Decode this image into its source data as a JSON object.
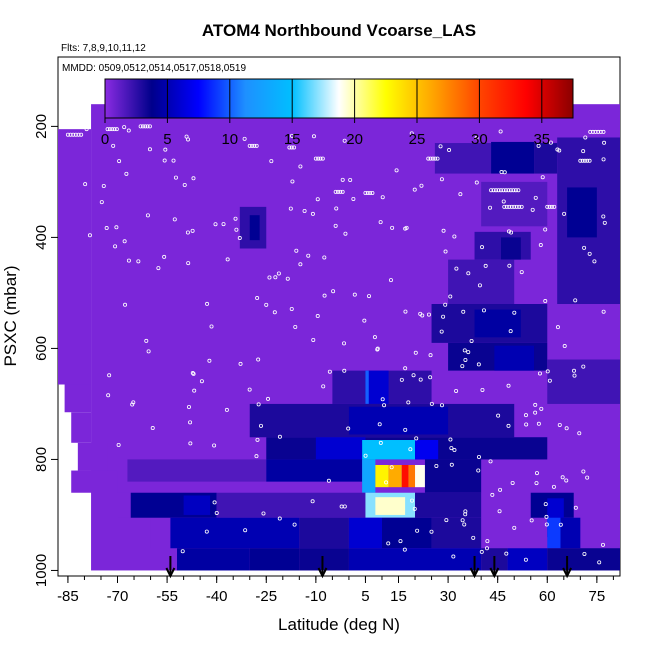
{
  "chart_data": {
    "type": "heatmap",
    "title": "ATOM4 Northbound Vcoarse_LAS",
    "flights_note": "Flts: 7,8,9,10,11,12",
    "dates_note": "MMDD: 0509,0512,0514,0517,0518,0519",
    "xlabel": "Latitude (deg N)",
    "ylabel": "PSXC (mbar)",
    "xlim": [
      -88,
      82
    ],
    "ylim": [
      1010,
      75
    ],
    "y_reversed": true,
    "x_ticks": [
      "-85",
      "-70",
      "-55",
      "-40",
      "-25",
      "-10",
      "5",
      "15",
      "30",
      "45",
      "60",
      "75"
    ],
    "y_ticks": [
      "200",
      "400",
      "600",
      "800",
      "1000"
    ],
    "colorbar": {
      "range": [
        0,
        37.5
      ],
      "ticks": [
        "0",
        "5",
        "10",
        "15",
        "20",
        "25",
        "30",
        "35"
      ],
      "colors": [
        "#8a2be2",
        "#00008b",
        "#0000ff",
        "#1e90ff",
        "#00bfff",
        "#ffffff",
        "#ffff00",
        "#ffa500",
        "#ff4500",
        "#ff0000",
        "#8b0000"
      ]
    },
    "background_level": 0.4,
    "coverage": [
      {
        "lat0": -78,
        "lat1": 82,
        "p0": 160,
        "p1": 1000
      },
      {
        "lat0": -88,
        "lat1": -78,
        "p0": 205,
        "p1": 665
      },
      {
        "lat0": -86,
        "lat1": -78,
        "p0": 665,
        "p1": 715
      },
      {
        "lat0": -84,
        "lat1": -78,
        "p0": 715,
        "p1": 770
      },
      {
        "lat0": -82,
        "lat1": -73,
        "p0": 770,
        "p1": 820
      },
      {
        "lat0": -84,
        "lat1": -70,
        "p0": 820,
        "p1": 860
      },
      {
        "lat0": -70,
        "lat1": -60,
        "p0": 860,
        "p1": 905
      },
      {
        "lat0": -60,
        "lat1": -54,
        "p0": 905,
        "p1": 960
      },
      {
        "lat0": -54,
        "lat1": -52,
        "p0": 960,
        "p1": 1000
      }
    ],
    "cells": [
      {
        "lat0": -33,
        "lat1": -25,
        "p0": 345,
        "p1": 420,
        "v": 2.5
      },
      {
        "lat0": -30,
        "lat1": -27,
        "p0": 360,
        "p1": 405,
        "v": 4
      },
      {
        "lat0": 26,
        "lat1": 43,
        "p0": 230,
        "p1": 285,
        "v": 2
      },
      {
        "lat0": 43,
        "lat1": 56,
        "p0": 228,
        "p1": 285,
        "v": 4
      },
      {
        "lat0": 56,
        "lat1": 63,
        "p0": 230,
        "p1": 285,
        "v": 3
      },
      {
        "lat0": 63,
        "lat1": 82,
        "p0": 220,
        "p1": 520,
        "v": 2.5
      },
      {
        "lat0": 66,
        "lat1": 75,
        "p0": 310,
        "p1": 400,
        "v": 4
      },
      {
        "lat0": 40,
        "lat1": 60,
        "p0": 300,
        "p1": 380,
        "v": 1.5
      },
      {
        "lat0": 38,
        "lat1": 55,
        "p0": 390,
        "p1": 440,
        "v": 2.5
      },
      {
        "lat0": 46,
        "lat1": 52,
        "p0": 400,
        "p1": 440,
        "v": 3.5
      },
      {
        "lat0": 30,
        "lat1": 50,
        "p0": 440,
        "p1": 520,
        "v": 2
      },
      {
        "lat0": 25,
        "lat1": 60,
        "p0": 520,
        "p1": 590,
        "v": 3
      },
      {
        "lat0": 38,
        "lat1": 52,
        "p0": 530,
        "p1": 580,
        "v": 4.5
      },
      {
        "lat0": 30,
        "lat1": 60,
        "p0": 590,
        "p1": 640,
        "v": 3.5
      },
      {
        "lat0": 44,
        "lat1": 56,
        "p0": 595,
        "p1": 640,
        "v": 5
      },
      {
        "lat0": 60,
        "lat1": 82,
        "p0": 620,
        "p1": 700,
        "v": 2
      },
      {
        "lat0": -5,
        "lat1": 25,
        "p0": 640,
        "p1": 700,
        "v": 2.5
      },
      {
        "lat0": 5,
        "lat1": 12,
        "p0": 640,
        "p1": 700,
        "v": 6
      },
      {
        "lat0": 5,
        "lat1": 6,
        "p0": 640,
        "p1": 700,
        "v": 10
      },
      {
        "lat0": -30,
        "lat1": 50,
        "p0": 700,
        "p1": 760,
        "v": 3
      },
      {
        "lat0": 0,
        "lat1": 30,
        "p0": 705,
        "p1": 755,
        "v": 5
      },
      {
        "lat0": -25,
        "lat1": 60,
        "p0": 760,
        "p1": 800,
        "v": 3.5
      },
      {
        "lat0": -10,
        "lat1": 5,
        "p0": 760,
        "p1": 800,
        "v": 6
      },
      {
        "lat0": 4,
        "lat1": 20,
        "p0": 765,
        "p1": 800,
        "v": 15
      },
      {
        "lat0": 20,
        "lat1": 27,
        "p0": 765,
        "p1": 800,
        "v": 7
      },
      {
        "lat0": -67,
        "lat1": -25,
        "p0": 800,
        "p1": 840,
        "v": 1.5
      },
      {
        "lat0": -25,
        "lat1": 4,
        "p0": 800,
        "p1": 840,
        "v": 4.5
      },
      {
        "lat0": 4,
        "lat1": 8,
        "p0": 800,
        "p1": 860,
        "v": 13
      },
      {
        "lat0": 8,
        "lat1": 12,
        "p0": 810,
        "p1": 850,
        "v": 23
      },
      {
        "lat0": 12,
        "lat1": 16,
        "p0": 810,
        "p1": 850,
        "v": 26
      },
      {
        "lat0": 16,
        "lat1": 18,
        "p0": 810,
        "p1": 850,
        "v": 33
      },
      {
        "lat0": 18,
        "lat1": 20,
        "p0": 810,
        "p1": 850,
        "v": 28
      },
      {
        "lat0": 20,
        "lat1": 23,
        "p0": 810,
        "p1": 850,
        "v": 19
      },
      {
        "lat0": 23,
        "lat1": 40,
        "p0": 800,
        "p1": 860,
        "v": 3.5
      },
      {
        "lat0": -66,
        "lat1": -40,
        "p0": 860,
        "p1": 905,
        "v": 4
      },
      {
        "lat0": -50,
        "lat1": -42,
        "p0": 865,
        "p1": 900,
        "v": 5.5
      },
      {
        "lat0": -40,
        "lat1": 5,
        "p0": 860,
        "p1": 905,
        "v": 2
      },
      {
        "lat0": 5,
        "lat1": 20,
        "p0": 860,
        "p1": 905,
        "v": 17
      },
      {
        "lat0": 8,
        "lat1": 17,
        "p0": 868,
        "p1": 900,
        "v": 19.5
      },
      {
        "lat0": 20,
        "lat1": 40,
        "p0": 860,
        "p1": 905,
        "v": 3
      },
      {
        "lat0": 55,
        "lat1": 68,
        "p0": 860,
        "p1": 905,
        "v": 4
      },
      {
        "lat0": 60,
        "lat1": 65,
        "p0": 870,
        "p1": 940,
        "v": 6
      },
      {
        "lat0": -54,
        "lat1": -15,
        "p0": 905,
        "p1": 960,
        "v": 5
      },
      {
        "lat0": -15,
        "lat1": 0,
        "p0": 905,
        "p1": 960,
        "v": 3
      },
      {
        "lat0": 0,
        "lat1": 10,
        "p0": 905,
        "p1": 960,
        "v": 6
      },
      {
        "lat0": 10,
        "lat1": 25,
        "p0": 905,
        "p1": 960,
        "v": 4
      },
      {
        "lat0": 25,
        "lat1": 40,
        "p0": 905,
        "p1": 960,
        "v": 3
      },
      {
        "lat0": 60,
        "lat1": 64,
        "p0": 905,
        "p1": 960,
        "v": 9
      },
      {
        "lat0": 64,
        "lat1": 70,
        "p0": 905,
        "p1": 960,
        "v": 5
      },
      {
        "lat0": -52,
        "lat1": -30,
        "p0": 960,
        "p1": 1000,
        "v": 4.5
      },
      {
        "lat0": -30,
        "lat1": -15,
        "p0": 960,
        "p1": 1000,
        "v": 4
      },
      {
        "lat0": -15,
        "lat1": 0,
        "p0": 960,
        "p1": 1000,
        "v": 3.5
      },
      {
        "lat0": 0,
        "lat1": 40,
        "p0": 960,
        "p1": 1000,
        "v": 5
      },
      {
        "lat0": 40,
        "lat1": 48,
        "p0": 960,
        "p1": 1000,
        "v": 3
      },
      {
        "lat0": 48,
        "lat1": 60,
        "p0": 960,
        "p1": 1000,
        "v": 5.5
      },
      {
        "lat0": 60,
        "lat1": 82,
        "p0": 960,
        "p1": 1000,
        "v": 3.5
      }
    ],
    "circle_clusters": [
      {
        "lat": -85,
        "p": 215,
        "n": 6,
        "dlat": 0.8
      },
      {
        "lat": -73,
        "p": 205,
        "n": 5,
        "dlat": 0.7
      },
      {
        "lat": -63,
        "p": 200,
        "n": 5,
        "dlat": 0.7
      },
      {
        "lat": -30,
        "p": 235,
        "n": 4,
        "dlat": 0.7
      },
      {
        "lat": -18,
        "p": 238,
        "n": 3,
        "dlat": 0.7
      },
      {
        "lat": -10,
        "p": 258,
        "n": 4,
        "dlat": 0.7
      },
      {
        "lat": 24,
        "p": 258,
        "n": 5,
        "dlat": 0.7
      },
      {
        "lat": 43,
        "p": 315,
        "n": 12,
        "dlat": 0.75
      },
      {
        "lat": 47,
        "p": 345,
        "n": 8,
        "dlat": 0.75
      },
      {
        "lat": 60,
        "p": 345,
        "n": 4,
        "dlat": 0.7
      },
      {
        "lat": -4,
        "p": 318,
        "n": 4,
        "dlat": 0.7
      },
      {
        "lat": 5,
        "p": 320,
        "n": 4,
        "dlat": 0.7
      },
      {
        "lat": 73,
        "p": 210,
        "n": 6,
        "dlat": 0.8
      },
      {
        "lat": 70,
        "p": 262,
        "n": 5,
        "dlat": 0.7
      }
    ],
    "arrow_latitudes": [
      -54,
      -8,
      38,
      44,
      66
    ]
  }
}
